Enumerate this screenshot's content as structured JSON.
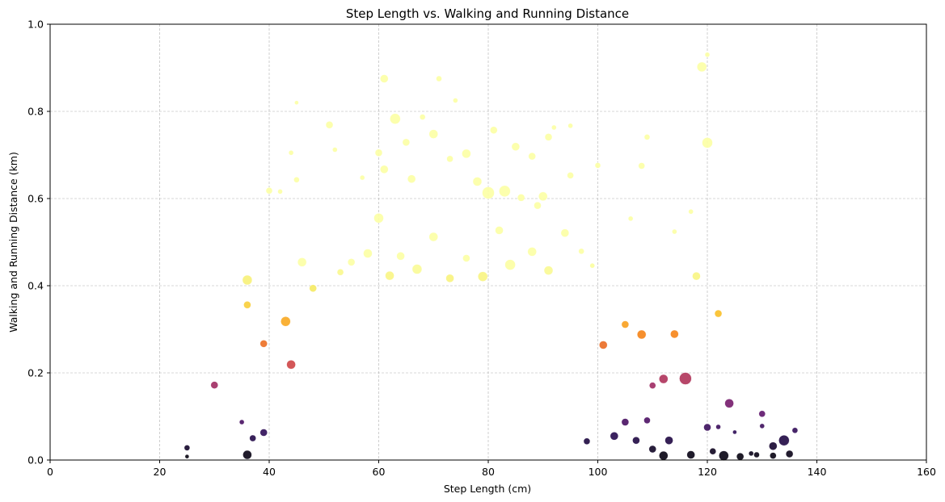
{
  "chart_data": {
    "type": "scatter",
    "title": "Step Length vs. Walking and Running Distance",
    "xlabel": "Step Length (cm)",
    "ylabel": "Walking and Running Distance (km)",
    "xlim": [
      0,
      160
    ],
    "ylim": [
      0,
      1.0
    ],
    "xticks": [
      "0",
      "20",
      "40",
      "60",
      "80",
      "100",
      "120",
      "140",
      "160"
    ],
    "yticks": [
      "0.0",
      "0.2",
      "0.4",
      "0.6",
      "0.8",
      "1.0"
    ],
    "grid": true,
    "colormap": "inferno",
    "color_encodes": "y",
    "size_varies": true,
    "points": [
      [
        30,
        0.172,
        9
      ],
      [
        36,
        0.413,
        12
      ],
      [
        36,
        0.356,
        9
      ],
      [
        39,
        0.267,
        9
      ],
      [
        40,
        0.618,
        8
      ],
      [
        42,
        0.616,
        6
      ],
      [
        43,
        0.318,
        12
      ],
      [
        44,
        0.219,
        11
      ],
      [
        44,
        0.705,
        6
      ],
      [
        45,
        0.82,
        5
      ],
      [
        45,
        0.643,
        7
      ],
      [
        46,
        0.454,
        11
      ],
      [
        51,
        0.769,
        9
      ],
      [
        60,
        0.555,
        12
      ],
      [
        60,
        0.705,
        9
      ],
      [
        61,
        0.875,
        10
      ],
      [
        63,
        0.783,
        13
      ],
      [
        65,
        0.729,
        9
      ],
      [
        70,
        0.748,
        11
      ],
      [
        71,
        0.875,
        7
      ],
      [
        74,
        0.825,
        6
      ],
      [
        78,
        0.639,
        11
      ],
      [
        80,
        0.613,
        15
      ],
      [
        81,
        0.757,
        9
      ],
      [
        83,
        0.617,
        14
      ],
      [
        85,
        0.719,
        10
      ],
      [
        88,
        0.697,
        9
      ],
      [
        91,
        0.741,
        9
      ],
      [
        92,
        0.763,
        6
      ],
      [
        95,
        0.767,
        6
      ],
      [
        100,
        0.676,
        7
      ],
      [
        106,
        0.554,
        6
      ],
      [
        108,
        0.675,
        8
      ],
      [
        109,
        0.741,
        7
      ],
      [
        114,
        0.524,
        6
      ],
      [
        117,
        0.57,
        6
      ],
      [
        118,
        0.422,
        10
      ],
      [
        119,
        0.902,
        12
      ],
      [
        120,
        0.728,
        13
      ],
      [
        120,
        0.93,
        6
      ],
      [
        122,
        0.336,
        9
      ],
      [
        105,
        0.311,
        9
      ],
      [
        108,
        0.288,
        11
      ],
      [
        112,
        0.186,
        11
      ],
      [
        114,
        0.289,
        10
      ],
      [
        116,
        0.187,
        15
      ],
      [
        110,
        0.171,
        8
      ],
      [
        101,
        0.264,
        10
      ],
      [
        124,
        0.13,
        11
      ],
      [
        130,
        0.106,
        8
      ],
      [
        120,
        0.075,
        9
      ],
      [
        122,
        0.076,
        6
      ],
      [
        125,
        0.064,
        5
      ],
      [
        130,
        0.078,
        6
      ],
      [
        134,
        0.045,
        13
      ],
      [
        136,
        0.068,
        7
      ],
      [
        132,
        0.032,
        10
      ],
      [
        135,
        0.014,
        9
      ],
      [
        35,
        0.087,
        6
      ],
      [
        37,
        0.05,
        8
      ],
      [
        39,
        0.063,
        9
      ],
      [
        36,
        0.012,
        11
      ],
      [
        25,
        0.028,
        7
      ],
      [
        25,
        0.008,
        5
      ],
      [
        123,
        0.01,
        12
      ],
      [
        117,
        0.012,
        10
      ],
      [
        113,
        0.045,
        10
      ],
      [
        110,
        0.025,
        9
      ],
      [
        132,
        0.01,
        8
      ],
      [
        129,
        0.012,
        7
      ],
      [
        126,
        0.008,
        9
      ],
      [
        128,
        0.015,
        6
      ],
      [
        121,
        0.02,
        8
      ],
      [
        112,
        0.01,
        11
      ],
      [
        107,
        0.045,
        9
      ],
      [
        105,
        0.087,
        9
      ],
      [
        109,
        0.091,
        8
      ],
      [
        103,
        0.055,
        10
      ],
      [
        98,
        0.043,
        8
      ],
      [
        66,
        0.645,
        10
      ],
      [
        61,
        0.667,
        10
      ],
      [
        73,
        0.691,
        8
      ],
      [
        86,
        0.602,
        9
      ],
      [
        90,
        0.605,
        11
      ],
      [
        57,
        0.648,
        6
      ],
      [
        52,
        0.712,
        6
      ],
      [
        68,
        0.787,
        7
      ],
      [
        76,
        0.703,
        11
      ],
      [
        95,
        0.653,
        8
      ],
      [
        89,
        0.584,
        9
      ],
      [
        55,
        0.454,
        9
      ],
      [
        58,
        0.474,
        11
      ],
      [
        64,
        0.468,
        10
      ],
      [
        70,
        0.512,
        11
      ],
      [
        76,
        0.463,
        9
      ],
      [
        82,
        0.527,
        10
      ],
      [
        88,
        0.478,
        11
      ],
      [
        94,
        0.521,
        10
      ],
      [
        84,
        0.448,
        13
      ],
      [
        48,
        0.394,
        9
      ],
      [
        53,
        0.431,
        8
      ],
      [
        62,
        0.423,
        11
      ],
      [
        67,
        0.438,
        12
      ],
      [
        73,
        0.417,
        10
      ],
      [
        79,
        0.421,
        12
      ],
      [
        91,
        0.435,
        11
      ],
      [
        97,
        0.479,
        7
      ],
      [
        99,
        0.446,
        6
      ]
    ]
  }
}
